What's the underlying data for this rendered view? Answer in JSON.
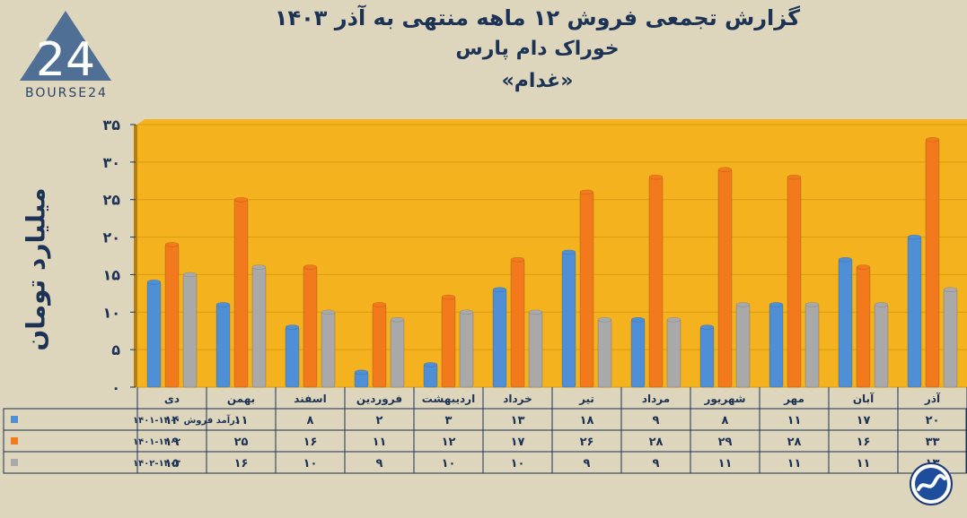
{
  "header": {
    "title": "گزارش تجمعی فروش ۱۲ ماهه منتهی به آذر ۱۴۰۳",
    "subtitle": "خوراک دام پارس",
    "ticker": "«غدام»"
  },
  "logo": {
    "text": "BOURSE24",
    "mark": "24"
  },
  "colors": {
    "background": "#ded5bd",
    "plot_bg": "#f4b21f",
    "series1": "#4e8fd6",
    "series2": "#f27a1c",
    "series3": "#a9a9a9"
  },
  "chart_data": {
    "type": "bar",
    "ylabel": "میلیارد تومان",
    "ylim": [
      0,
      35
    ],
    "yticks": [
      "۰",
      "۵",
      "۱۰",
      "۱۵",
      "۲۰",
      "۲۵",
      "۳۰",
      "۳۵"
    ],
    "categories": [
      "دی",
      "بهمن",
      "اسفند",
      "فروردین",
      "اردیبهشت",
      "خرداد",
      "تیر",
      "مرداد",
      "شهریور",
      "مهر",
      "آبان",
      "آذر"
    ],
    "series": [
      {
        "name": "درآمد فروش ۱۴۰۰-۱۴۰۱",
        "values": [
          14,
          11,
          8,
          2,
          3,
          13,
          18,
          9,
          8,
          11,
          17,
          20
        ],
        "labels": [
          "۱۴",
          "۱۱",
          "۸",
          "۲",
          "۳",
          "۱۳",
          "۱۸",
          "۹",
          "۸",
          "۱۱",
          "۱۷",
          "۲۰"
        ]
      },
      {
        "name": "۱۴۰۱-۱۴۰۲",
        "values": [
          19,
          25,
          16,
          11,
          12,
          17,
          26,
          28,
          29,
          28,
          16,
          33
        ],
        "labels": [
          "۱۹",
          "۲۵",
          "۱۶",
          "۱۱",
          "۱۲",
          "۱۷",
          "۲۶",
          "۲۸",
          "۲۹",
          "۲۸",
          "۱۶",
          "۳۳"
        ]
      },
      {
        "name": "۱۴۰۲-۱۴۰۳",
        "values": [
          15,
          16,
          10,
          9,
          10,
          10,
          9,
          9,
          11,
          11,
          11,
          13
        ],
        "labels": [
          "۱۵",
          "۱۶",
          "۱۰",
          "۹",
          "۱۰",
          "۱۰",
          "۹",
          "۹",
          "۱۱",
          "۱۱",
          "۱۱",
          "۱۳"
        ]
      }
    ]
  }
}
